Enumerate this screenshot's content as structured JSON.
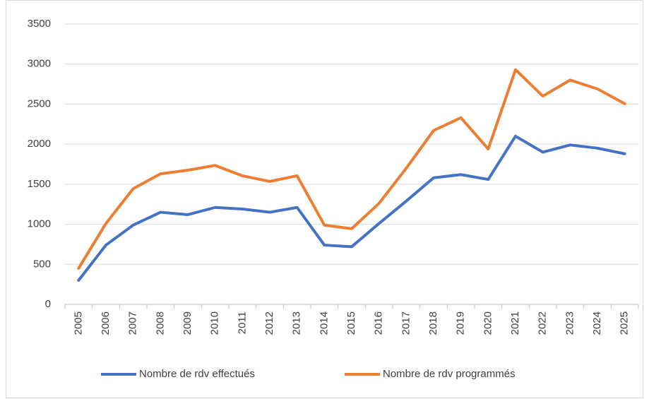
{
  "chart_data": {
    "type": "line",
    "categories": [
      "2005",
      "2006",
      "2007",
      "2008",
      "2009",
      "2010",
      "2011",
      "2012",
      "2013",
      "2014",
      "2015",
      "2016",
      "2017",
      "2018",
      "2019",
      "2020",
      "2021",
      "2022",
      "2023",
      "2024",
      "2025"
    ],
    "series": [
      {
        "name": "Nombre de rdv effectués",
        "color": "#4472c4",
        "values": [
          300,
          740,
          990,
          1150,
          1120,
          1210,
          1190,
          1150,
          1210,
          740,
          720,
          1010,
          1290,
          1580,
          1620,
          1560,
          2100,
          1900,
          1990,
          1950,
          1880
        ]
      },
      {
        "name": "Nombre de rdv programmés",
        "color": "#ed7d31",
        "values": [
          450,
          1010,
          1445,
          1630,
          1675,
          1735,
          1605,
          1535,
          1605,
          990,
          945,
          1260,
          1700,
          2170,
          2330,
          1940,
          2930,
          2600,
          2800,
          2690,
          2505
        ]
      }
    ],
    "ylim": [
      0,
      3500
    ],
    "yticks": [
      0,
      500,
      1000,
      1500,
      2000,
      2500,
      3000,
      3500
    ],
    "grid": true,
    "legend": "bottom"
  }
}
